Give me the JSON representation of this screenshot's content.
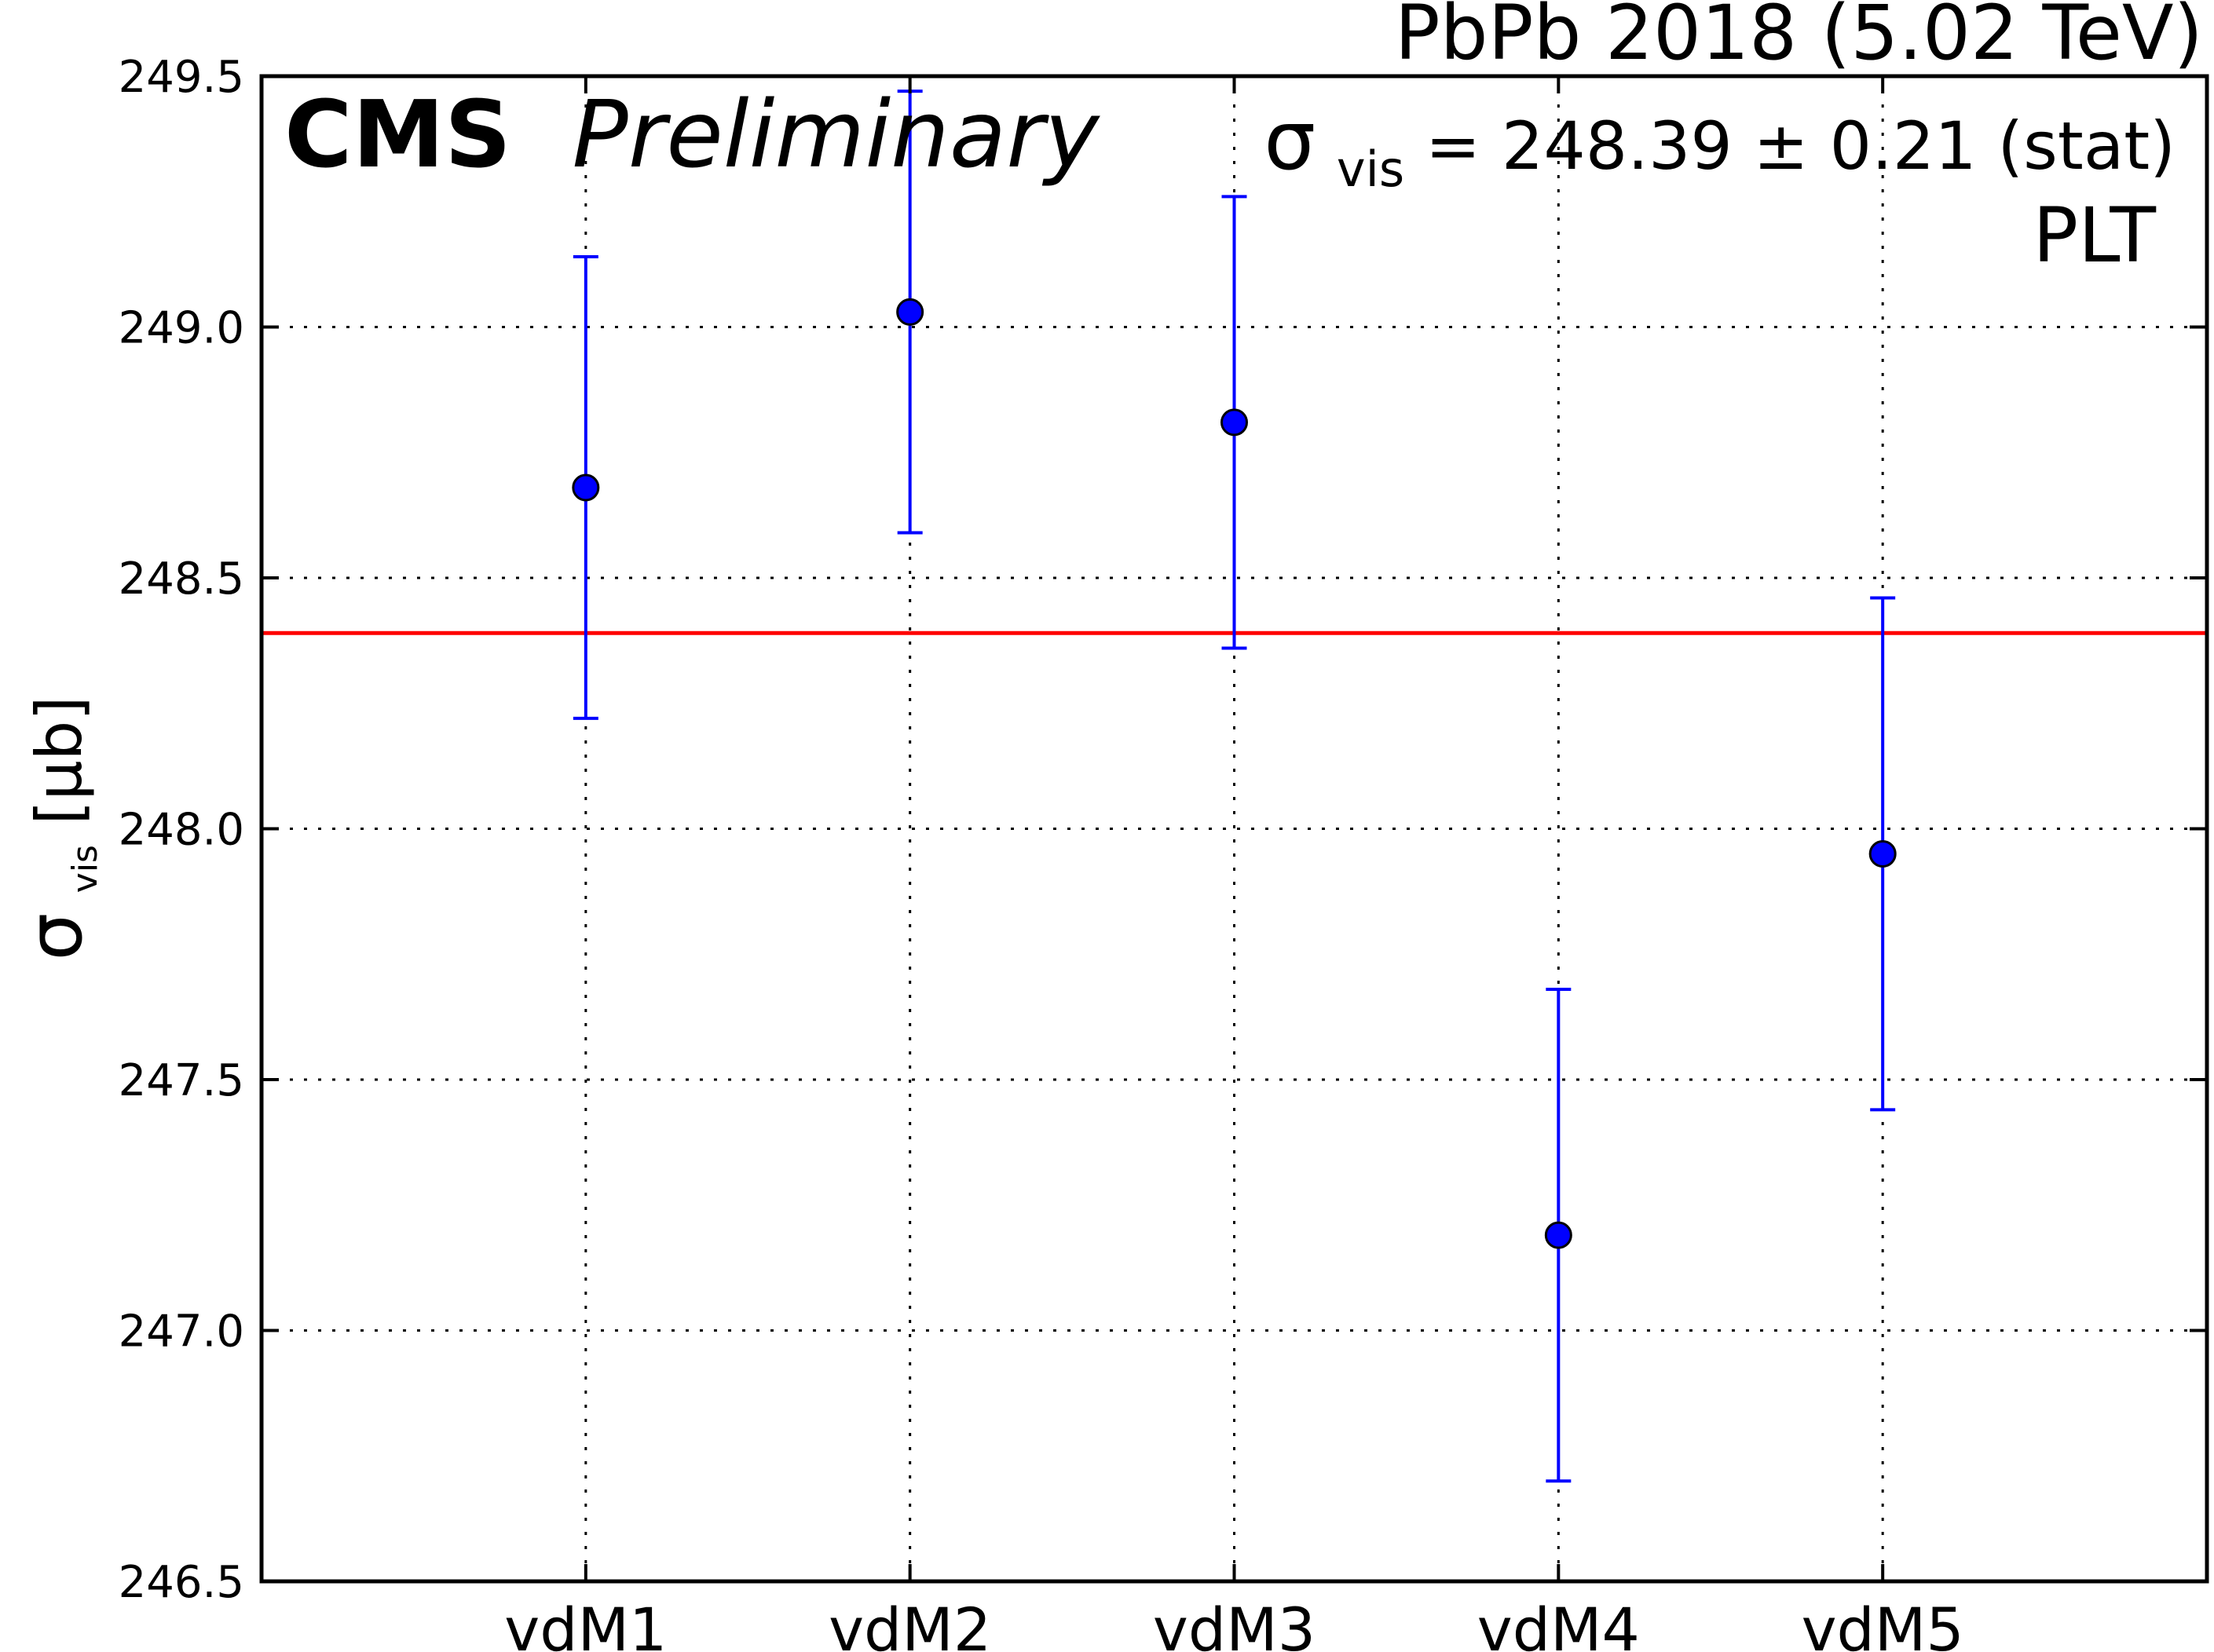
{
  "chart_data": {
    "type": "scatter",
    "experiment": "CMS",
    "status": "Preliminary",
    "collision_label": "PbPb 2018 (5.02 TeV)",
    "result": {
      "symbol": "σ",
      "subscript": "vis",
      "text": "= 248.39 ± 0.21 (stat)",
      "value": 248.39
    },
    "detector": "PLT",
    "ylabel": {
      "symbol": "σ",
      "subscript": "vis",
      "unit": " [μb]"
    },
    "xlabel": "",
    "ylim": [
      246.5,
      249.5
    ],
    "yticks": [
      "246.5",
      "247.0",
      "247.5",
      "248.0",
      "248.5",
      "249.0",
      "249.5"
    ],
    "xlim": [
      0,
      6
    ],
    "categories": [
      "vdM1",
      "vdM2",
      "vdM3",
      "vdM4",
      "vdM5"
    ],
    "series": [
      {
        "values": [
          248.68,
          249.03,
          248.81,
          247.19,
          247.95
        ],
        "errors": [
          0.46,
          0.44,
          0.45,
          0.49,
          0.51
        ],
        "marker_color": "#0000ff"
      }
    ],
    "reference_line": {
      "value": 248.39,
      "color": "#ff0000"
    },
    "grid": true
  }
}
